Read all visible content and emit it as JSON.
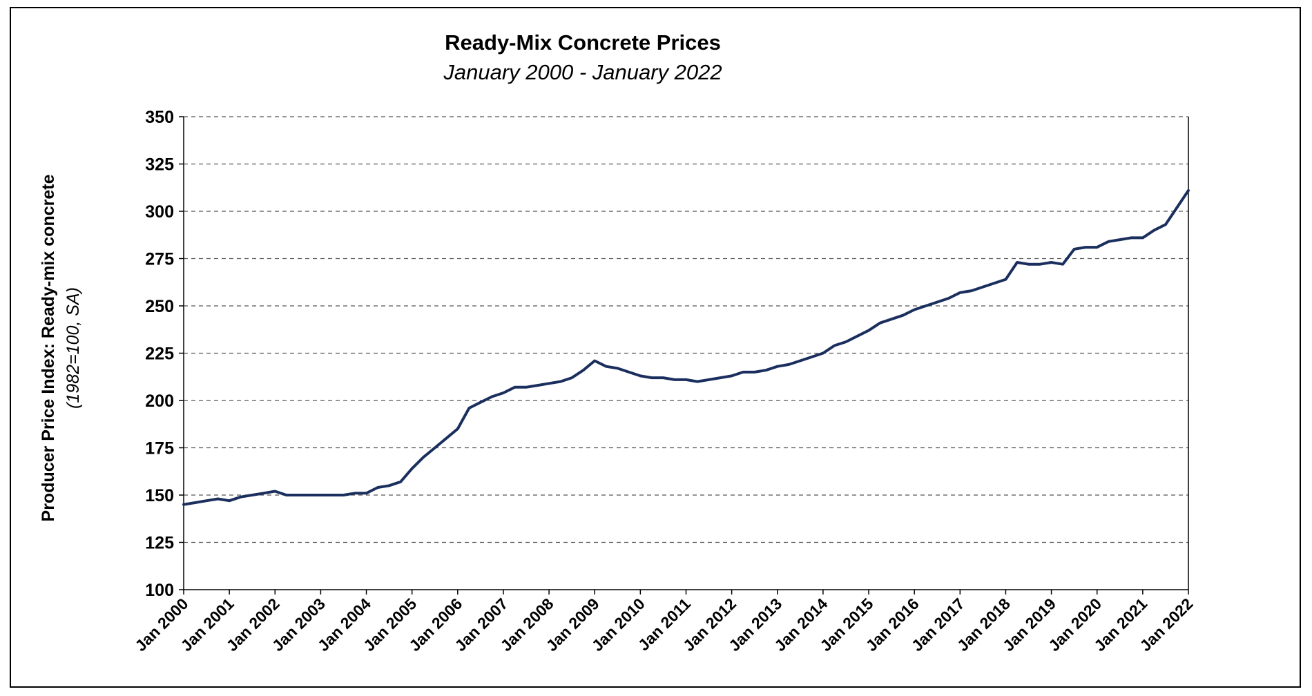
{
  "chart_data": {
    "type": "line",
    "title": "Ready-Mix Concrete Prices",
    "subtitle": "January 2000 - January 2022",
    "ylabel": "Producer Price Index: Ready-mix concrete",
    "ylabel_units": "(1982=100, SA)",
    "xlabel": "",
    "ylim": [
      100,
      350
    ],
    "yticks": [
      100,
      125,
      150,
      175,
      200,
      225,
      250,
      275,
      300,
      325,
      350
    ],
    "xlim": [
      "2000-01",
      "2022-01"
    ],
    "xtick_labels": [
      "Jan 2000",
      "Jan 2001",
      "Jan 2002",
      "Jan 2003",
      "Jan 2004",
      "Jan 2005",
      "Jan 2006",
      "Jan 2007",
      "Jan 2008",
      "Jan 2009",
      "Jan 2010",
      "Jan 2011",
      "Jan 2012",
      "Jan 2013",
      "Jan 2014",
      "Jan 2015",
      "Jan 2016",
      "Jan 2017",
      "Jan 2018",
      "Jan 2019",
      "Jan 2020",
      "Jan 2021",
      "Jan 2022"
    ],
    "grid": "horizontal dashed",
    "line_color": "#1b2f5e",
    "series": [
      {
        "x": [
          "2000-01",
          "2000-04",
          "2000-07",
          "2000-10",
          "2001-01",
          "2001-04",
          "2001-07",
          "2001-10",
          "2002-01",
          "2002-04",
          "2002-07",
          "2002-10",
          "2003-01",
          "2003-04",
          "2003-07",
          "2003-10",
          "2004-01",
          "2004-04",
          "2004-07",
          "2004-10",
          "2005-01",
          "2005-04",
          "2005-07",
          "2005-10",
          "2006-01",
          "2006-04",
          "2006-07",
          "2006-10",
          "2007-01",
          "2007-04",
          "2007-07",
          "2007-10",
          "2008-01",
          "2008-04",
          "2008-07",
          "2008-10",
          "2009-01",
          "2009-04",
          "2009-07",
          "2009-10",
          "2010-01",
          "2010-04",
          "2010-07",
          "2010-10",
          "2011-01",
          "2011-04",
          "2011-07",
          "2011-10",
          "2012-01",
          "2012-04",
          "2012-07",
          "2012-10",
          "2013-01",
          "2013-04",
          "2013-07",
          "2013-10",
          "2014-01",
          "2014-04",
          "2014-07",
          "2014-10",
          "2015-01",
          "2015-04",
          "2015-07",
          "2015-10",
          "2016-01",
          "2016-04",
          "2016-07",
          "2016-10",
          "2017-01",
          "2017-04",
          "2017-07",
          "2017-10",
          "2018-01",
          "2018-04",
          "2018-07",
          "2018-10",
          "2019-01",
          "2019-04",
          "2019-07",
          "2019-10",
          "2020-01",
          "2020-04",
          "2020-07",
          "2020-10",
          "2021-01",
          "2021-04",
          "2021-07",
          "2021-10",
          "2022-01"
        ],
        "values": [
          145,
          146,
          147,
          148,
          147,
          149,
          150,
          151,
          152,
          150,
          150,
          150,
          150,
          150,
          150,
          151,
          151,
          154,
          155,
          157,
          164,
          170,
          175,
          180,
          185,
          196,
          199,
          202,
          204,
          207,
          207,
          208,
          209,
          210,
          212,
          216,
          221,
          218,
          217,
          215,
          213,
          212,
          212,
          211,
          211,
          210,
          211,
          212,
          213,
          215,
          215,
          216,
          218,
          219,
          221,
          223,
          225,
          229,
          231,
          234,
          237,
          241,
          243,
          245,
          248,
          250,
          252,
          254,
          257,
          258,
          260,
          262,
          264,
          273,
          272,
          272,
          273,
          272,
          280,
          281,
          281,
          284,
          285,
          286,
          286,
          290,
          293,
          302,
          311
        ]
      }
    ]
  }
}
